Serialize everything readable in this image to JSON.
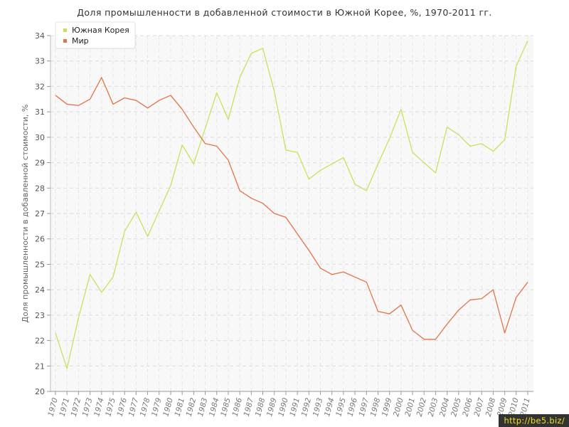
{
  "chart_data": {
    "type": "line",
    "title": "Доля промышленности в добавленной стоимости в Южной Корее, %, 1970-2011 гг.",
    "xlabel": "",
    "ylabel": "Доля промышленности в добавленной стоимости, %",
    "ylim": [
      20,
      34
    ],
    "yticks": [
      20,
      21,
      22,
      23,
      24,
      25,
      26,
      27,
      28,
      29,
      30,
      31,
      32,
      33,
      34
    ],
    "grid": true,
    "legend_position": "top-left",
    "x": [
      "1970",
      "1971",
      "1972",
      "1973",
      "1974",
      "1975",
      "1976",
      "1977",
      "1978",
      "1979",
      "1980",
      "1981",
      "1982",
      "1983",
      "1984",
      "1985",
      "1986",
      "1987",
      "1988",
      "1989",
      "1990",
      "1991",
      "1992",
      "1993",
      "1994",
      "1995",
      "1996",
      "1997",
      "1998",
      "1999",
      "2000",
      "2001",
      "2002",
      "2003",
      "2004",
      "2005",
      "2006",
      "2007",
      "2008",
      "2009",
      "2010",
      "2011"
    ],
    "series": [
      {
        "name": "Южная Корея",
        "color": "#c6e25c",
        "values": [
          22.3,
          20.9,
          22.9,
          24.6,
          23.9,
          24.5,
          26.3,
          27.05,
          26.1,
          27.1,
          28.1,
          29.7,
          28.95,
          30.35,
          31.75,
          30.7,
          32.35,
          33.3,
          33.5,
          31.8,
          29.5,
          29.4,
          28.35,
          28.7,
          28.95,
          29.2,
          28.15,
          27.9,
          28.95,
          29.95,
          31.1,
          29.4,
          29.0,
          28.6,
          30.4,
          30.1,
          29.65,
          29.75,
          29.45,
          29.9,
          32.8,
          33.8
        ]
      },
      {
        "name": "Мир",
        "color": "#e27348",
        "values": [
          31.65,
          31.3,
          31.25,
          31.5,
          32.35,
          31.3,
          31.55,
          31.45,
          31.15,
          31.45,
          31.65,
          31.1,
          30.4,
          29.75,
          29.65,
          29.1,
          27.9,
          27.6,
          27.4,
          27.0,
          26.85,
          26.2,
          25.55,
          24.85,
          24.6,
          24.7,
          24.5,
          24.3,
          23.15,
          23.05,
          23.4,
          22.4,
          22.05,
          22.05,
          22.65,
          23.2,
          23.6,
          23.65,
          24.0,
          22.3,
          23.7,
          24.3
        ]
      }
    ]
  },
  "watermark": "http://be5.biz/"
}
